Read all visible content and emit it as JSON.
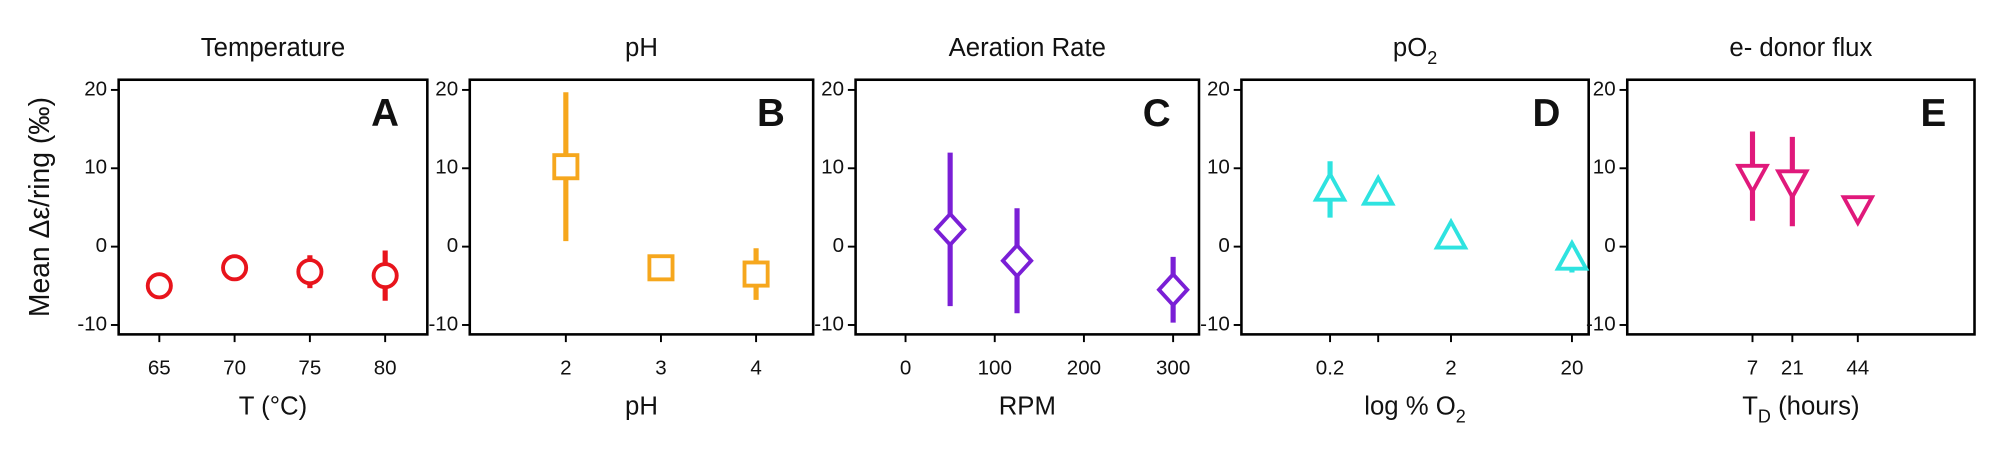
{
  "chart_data": [
    {
      "type": "scatter",
      "title": [
        {
          "text": "Temperature"
        }
      ],
      "panel_label": "A",
      "ylabel": "Mean Δε/ring (‰)",
      "xlabel": [
        {
          "text": "T (°C)"
        }
      ],
      "marker": "circle",
      "color": "#e8141c",
      "x": [
        65,
        70,
        75,
        80
      ],
      "values": [
        -5,
        -2.7,
        -3.2,
        -3.7
      ],
      "errors": [
        null,
        null,
        2.1,
        3.2
      ],
      "xlim": [
        62.3,
        82.8
      ],
      "ylim": [
        -11.2,
        21.3
      ],
      "xticks": [
        65,
        70,
        75,
        80
      ],
      "yticks": [
        20,
        10,
        0,
        -10
      ]
    },
    {
      "type": "scatter",
      "title": [
        {
          "text": "pH"
        }
      ],
      "panel_label": "B",
      "xlabel": [
        {
          "text": "pH"
        }
      ],
      "marker": "square",
      "color": "#f6a71d",
      "x": [
        2,
        3,
        4
      ],
      "values": [
        10.2,
        -2.7,
        -3.5
      ],
      "errors": [
        9.5,
        null,
        3.3
      ],
      "xlim": [
        0.99,
        4.6
      ],
      "ylim": [
        -11.2,
        21.3
      ],
      "xticks": [
        2,
        3,
        4
      ],
      "yticks": [
        20,
        10,
        0,
        -10
      ]
    },
    {
      "type": "scatter",
      "title": [
        {
          "text": "Aeration Rate"
        }
      ],
      "panel_label": "C",
      "xlabel": [
        {
          "text": "RPM"
        }
      ],
      "marker": "diamond",
      "color": "#7a1fd6",
      "x": [
        50,
        125,
        300
      ],
      "values": [
        2.2,
        -1.8,
        -5.5
      ],
      "errors": [
        9.8,
        6.7,
        4.2
      ],
      "xlim": [
        -56,
        329
      ],
      "ylim": [
        -11.2,
        21.3
      ],
      "xticks": [
        0,
        100,
        200,
        300
      ],
      "yticks": [
        20,
        10,
        0,
        -10
      ]
    },
    {
      "type": "scatter",
      "title": [
        {
          "text": "pO"
        },
        {
          "text": "2",
          "sub": true
        }
      ],
      "panel_label": "D",
      "xlabel": [
        {
          "text": "log % O"
        },
        {
          "text": "2",
          "sub": true
        }
      ],
      "marker": "triangle-up",
      "color": "#2ee3e0",
      "log_x": true,
      "x": [
        0.2,
        0.5,
        2,
        20
      ],
      "values": [
        7.3,
        6.8,
        1.2,
        -1.5
      ],
      "errors": [
        3.6,
        null,
        null,
        1.8
      ],
      "xlim": [
        0.037,
        27.5
      ],
      "ylim": [
        -11.2,
        21.3
      ],
      "xticks": [
        0.2,
        {
          "value": 0.5,
          "label": null
        },
        2,
        20
      ],
      "yticks": [
        20,
        10,
        0,
        -10
      ]
    },
    {
      "type": "scatter",
      "title": [
        {
          "text": "e- donor flux"
        }
      ],
      "panel_label": "E",
      "xlabel": [
        {
          "text": "T"
        },
        {
          "text": "D",
          "sub": true
        },
        {
          "text": " (hours)"
        }
      ],
      "marker": "triangle-down",
      "color": "#e0197b",
      "x": [
        7,
        21,
        44
      ],
      "values": [
        9,
        8.3,
        5
      ],
      "errors": [
        5.7,
        5.7,
        1.5
      ],
      "xlim": [
        -37,
        85
      ],
      "ylim": [
        -11.2,
        21.3
      ],
      "xticks": [
        7,
        21,
        44
      ],
      "yticks": [
        20,
        10,
        0,
        -10
      ]
    }
  ]
}
